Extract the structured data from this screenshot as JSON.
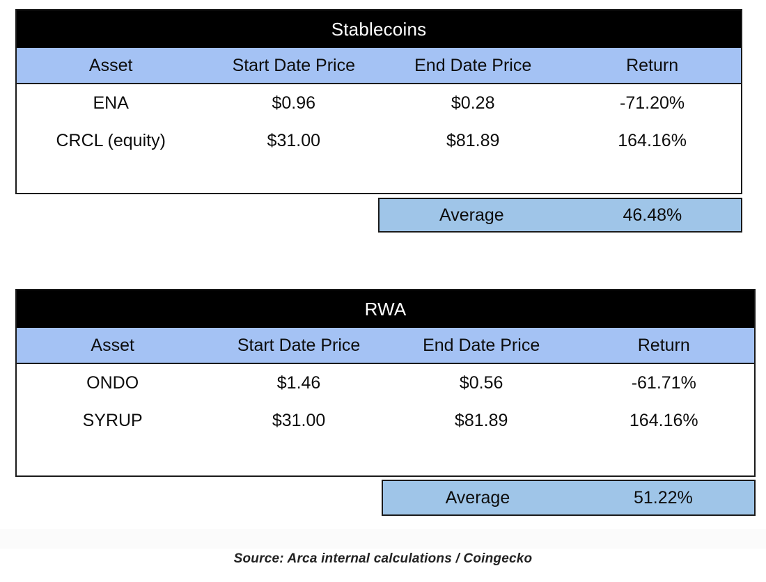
{
  "colors": {
    "title_bg": "#000000",
    "title_text": "#ffffff",
    "column_header_bg": "#a4c2f4",
    "average_bg": "#9fc5e8",
    "border": "#1a1a1a",
    "body_text": "#0d0d0d"
  },
  "tables": [
    {
      "title": "Stablecoins",
      "columns": [
        "Asset",
        "Start Date Price",
        "End Date Price",
        "Return"
      ],
      "rows": [
        {
          "asset": "ENA",
          "start": "$0.96",
          "end": "$0.28",
          "return": "-71.20%"
        },
        {
          "asset": "CRCL (equity)",
          "start": "$31.00",
          "end": "$81.89",
          "return": "164.16%"
        }
      ],
      "average_label": "Average",
      "average_value": "46.48%"
    },
    {
      "title": "RWA",
      "columns": [
        "Asset",
        "Start Date Price",
        "End Date Price",
        "Return"
      ],
      "rows": [
        {
          "asset": "ONDO",
          "start": "$1.46",
          "end": "$0.56",
          "return": "-61.71%"
        },
        {
          "asset": "SYRUP",
          "start": "$31.00",
          "end": "$81.89",
          "return": "164.16%"
        }
      ],
      "average_label": "Average",
      "average_value": "51.22%"
    }
  ],
  "source_note": "Source:  Arca internal calculations / Coingecko",
  "chart_data": [
    {
      "type": "table",
      "title": "Stablecoins",
      "columns": [
        "Asset",
        "Start Date Price",
        "End Date Price",
        "Return"
      ],
      "rows": [
        [
          "ENA",
          0.96,
          0.28,
          -71.2
        ],
        [
          "CRCL (equity)",
          31.0,
          81.89,
          164.16
        ]
      ],
      "average_return_pct": 46.48
    },
    {
      "type": "table",
      "title": "RWA",
      "columns": [
        "Asset",
        "Start Date Price",
        "End Date Price",
        "Return"
      ],
      "rows": [
        [
          "ONDO",
          1.46,
          0.56,
          -61.71
        ],
        [
          "SYRUP",
          31.0,
          81.89,
          164.16
        ]
      ],
      "average_return_pct": 51.22
    }
  ]
}
